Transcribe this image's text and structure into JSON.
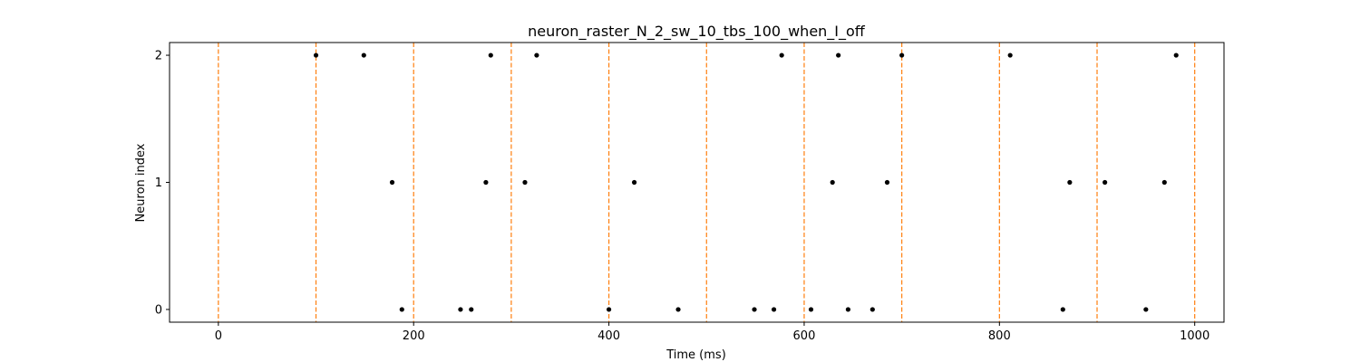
{
  "chart_data": {
    "type": "scatter",
    "title": "neuron_raster_N_2_sw_10_tbs_100_when_I_off",
    "xlabel": "Time (ms)",
    "ylabel": "Neuron index",
    "xlim": [
      -50,
      1030
    ],
    "ylim": [
      -0.1,
      2.1
    ],
    "xticks": [
      0,
      200,
      400,
      600,
      800,
      1000
    ],
    "yticks": [
      0,
      1,
      2
    ],
    "grid": false,
    "marker_color": "#000000",
    "vline_color": "#ff7f0e",
    "vlines": [
      0,
      100,
      200,
      300,
      400,
      500,
      600,
      700,
      800,
      900,
      1000
    ],
    "series": [
      {
        "neuron": 0,
        "times": [
          188,
          248,
          259,
          400,
          471,
          549,
          569,
          607,
          645,
          670,
          865,
          950
        ]
      },
      {
        "neuron": 1,
        "times": [
          178,
          274,
          314,
          426,
          629,
          685,
          872,
          908,
          969
        ]
      },
      {
        "neuron": 2,
        "times": [
          100,
          149,
          279,
          326,
          577,
          635,
          700,
          811,
          981
        ]
      }
    ]
  }
}
